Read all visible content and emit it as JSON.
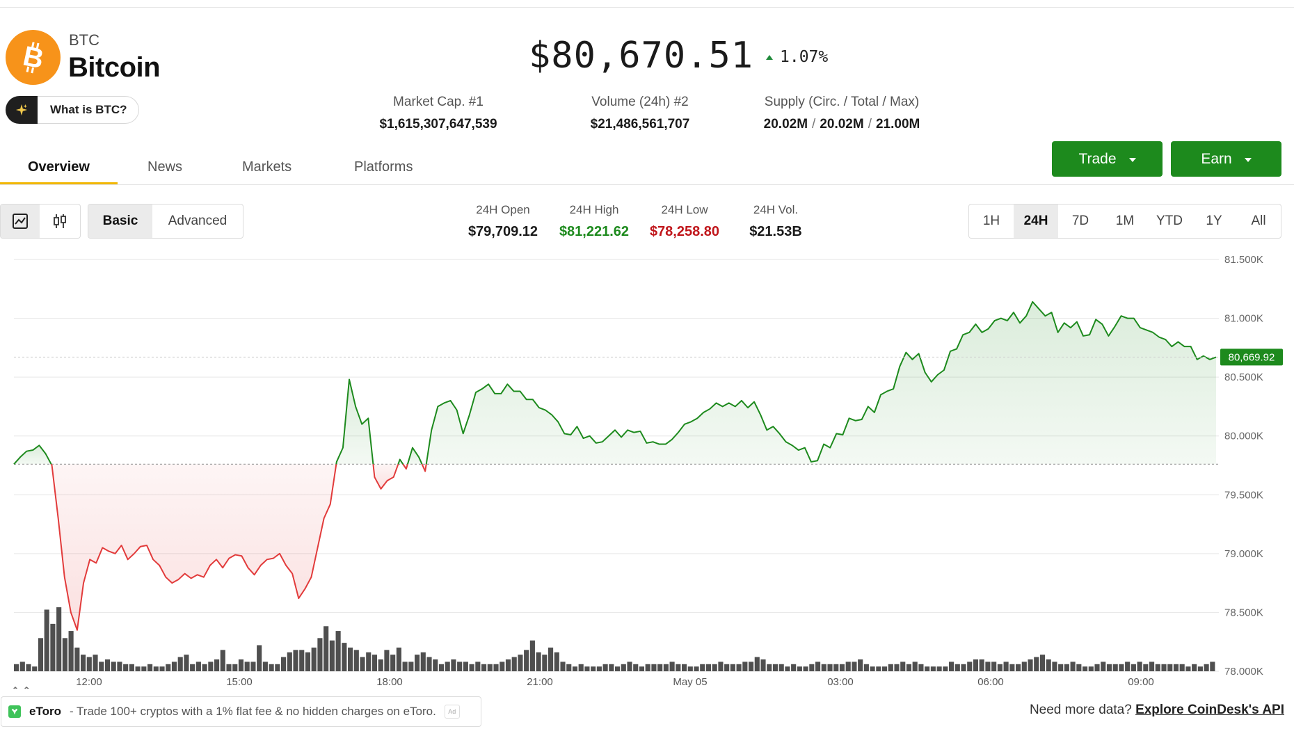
{
  "coin": {
    "symbol": "BTC",
    "name": "Bitcoin",
    "what_is": "What is BTC?"
  },
  "price": {
    "value": "$80,670.51",
    "change": "1.07%",
    "direction": "up"
  },
  "stats": [
    {
      "label": "Market Cap. #1",
      "value": "$1,615,307,647,539"
    },
    {
      "label": "Volume (24h) #2",
      "value": "$21,486,561,707"
    },
    {
      "label": "Supply (Circ. / Total / Max)",
      "circ": "20.02M",
      "total": "20.02M",
      "max": "21.00M",
      "sep": "/"
    }
  ],
  "tabs": [
    "Overview",
    "News",
    "Markets",
    "Platforms"
  ],
  "active_tab": "Overview",
  "buttons": {
    "trade": "Trade",
    "earn": "Earn"
  },
  "chart_style": {
    "line_icon": "line-chart-icon",
    "candle_icon": "candlestick-icon"
  },
  "view_mode": {
    "basic": "Basic",
    "advanced": "Advanced",
    "selected": "Basic"
  },
  "ohlc": [
    {
      "label": "24H Open",
      "value": "$79,709.12",
      "color": "#1a1a1a"
    },
    {
      "label": "24H High",
      "value": "$81,221.62",
      "color": "#1d8a1d"
    },
    {
      "label": "24H Low",
      "value": "$78,258.80",
      "color": "#c0161b"
    },
    {
      "label": "24H Vol.",
      "value": "$21.53B",
      "color": "#1a1a1a"
    }
  ],
  "ranges": [
    "1H",
    "24H",
    "7D",
    "1M",
    "YTD",
    "1Y",
    "All"
  ],
  "selected_range": "24H",
  "colors": {
    "up": "#1d8a1d",
    "down": "#e23b3b",
    "accent": "#f2b705",
    "btc": "#f7931a"
  },
  "chart_data": {
    "type": "area",
    "ylim": [
      78000,
      81500
    ],
    "y_ticks": [
      "81.500K",
      "81.000K",
      "80.500K",
      "80.000K",
      "79.500K",
      "79.000K",
      "78.500K",
      "78.000K"
    ],
    "x_ticks": [
      "12:00",
      "15:00",
      "18:00",
      "21:00",
      "May 05",
      "03:00",
      "06:00",
      "09:00"
    ],
    "baseline": 79760,
    "last_label": "80,669.92",
    "last_value": 80669.92,
    "series": [
      {
        "values": [
          79760,
          79820,
          79870,
          79880,
          79920,
          79850,
          79750,
          79300,
          78800,
          78500,
          78350,
          78750,
          78950,
          78920,
          79050,
          79020,
          79000,
          79070,
          78950,
          79000,
          79060,
          79070,
          78950,
          78900,
          78800,
          78750,
          78780,
          78830,
          78790,
          78820,
          78800,
          78900,
          78950,
          78880,
          78960,
          78990,
          78980,
          78880,
          78820,
          78900,
          78950,
          78960,
          79000,
          78900,
          78830,
          78620,
          78700,
          78800,
          79050,
          79300,
          79420,
          79780,
          79900,
          80480,
          80250,
          80100,
          80150,
          79650,
          79550,
          79620,
          79650,
          79800,
          79720,
          79900,
          79820,
          79700,
          80050,
          80250,
          80280,
          80300,
          80220,
          80020,
          80180,
          80370,
          80400,
          80440,
          80360,
          80360,
          80440,
          80380,
          80380,
          80310,
          80310,
          80240,
          80220,
          80180,
          80120,
          80020,
          80010,
          80080,
          79980,
          80000,
          79940,
          79950,
          80000,
          80050,
          79990,
          80050,
          80030,
          80040,
          79940,
          79950,
          79930,
          79930,
          79970,
          80030,
          80100,
          80120,
          80150,
          80200,
          80230,
          80280,
          80250,
          80280,
          80250,
          80300,
          80240,
          80290,
          80180,
          80050,
          80080,
          80020,
          79950,
          79920,
          79880,
          79900,
          79780,
          79790,
          79930,
          79900,
          80020,
          80010,
          80150,
          80130,
          80140,
          80250,
          80200,
          80350,
          80380,
          80400,
          80590,
          80710,
          80650,
          80700,
          80540,
          80460,
          80520,
          80560,
          80720,
          80740,
          80860,
          80880,
          80950,
          80880,
          80910,
          80980,
          81000,
          80980,
          81050,
          80960,
          81020,
          81140,
          81080,
          81020,
          81050,
          80880,
          80960,
          80920,
          80970,
          80850,
          80860,
          80990,
          80950,
          80850,
          80930,
          81020,
          81000,
          81000,
          80920,
          80900,
          80880,
          80840,
          80820,
          80760,
          80800,
          80760,
          80760,
          80650,
          80680,
          80650,
          80670
        ]
      }
    ],
    "volume": [
      3,
      4,
      3,
      2,
      14,
      26,
      20,
      27,
      14,
      17,
      10,
      7,
      6,
      7,
      4,
      5,
      4,
      4,
      3,
      3,
      2,
      2,
      3,
      2,
      2,
      3,
      4,
      6,
      7,
      3,
      4,
      3,
      4,
      5,
      9,
      3,
      3,
      5,
      4,
      4,
      11,
      4,
      3,
      3,
      6,
      8,
      9,
      9,
      8,
      10,
      14,
      19,
      13,
      17,
      12,
      10,
      9,
      6,
      8,
      7,
      5,
      9,
      7,
      10,
      4,
      4,
      7,
      8,
      6,
      5,
      3,
      4,
      5,
      4,
      4,
      3,
      4,
      3,
      3,
      3,
      4,
      5,
      6,
      7,
      9,
      13,
      8,
      7,
      10,
      8,
      4,
      3,
      2,
      3,
      2,
      2,
      2,
      3,
      3,
      2,
      3,
      4,
      3,
      2,
      3,
      3,
      3,
      3,
      4,
      3,
      3,
      2,
      2,
      3,
      3,
      3,
      4,
      3,
      3,
      3,
      4,
      4,
      6,
      5,
      3,
      3,
      3,
      2,
      3,
      2,
      2,
      3,
      4,
      3,
      3,
      3,
      3,
      4,
      4,
      5,
      3,
      2,
      2,
      2,
      3,
      3,
      4,
      3,
      4,
      3,
      2,
      2,
      2,
      2,
      4,
      3,
      3,
      4,
      5,
      5,
      4,
      4,
      3,
      4,
      3,
      3,
      4,
      5,
      6,
      7,
      5,
      4,
      3,
      3,
      4,
      3,
      2,
      2,
      3,
      4,
      3,
      3,
      3,
      4,
      3,
      4,
      3,
      4,
      3,
      3,
      3,
      3,
      3,
      2,
      3,
      2,
      3,
      4
    ]
  },
  "ad": {
    "brand": "eToro",
    "text": "- Trade 100+ cryptos with a 1% flat fee & no hidden charges on eToro.",
    "tag": "Ad"
  },
  "footer": {
    "prefix": "Need more data?",
    "link": "Explore CoinDesk's API"
  }
}
